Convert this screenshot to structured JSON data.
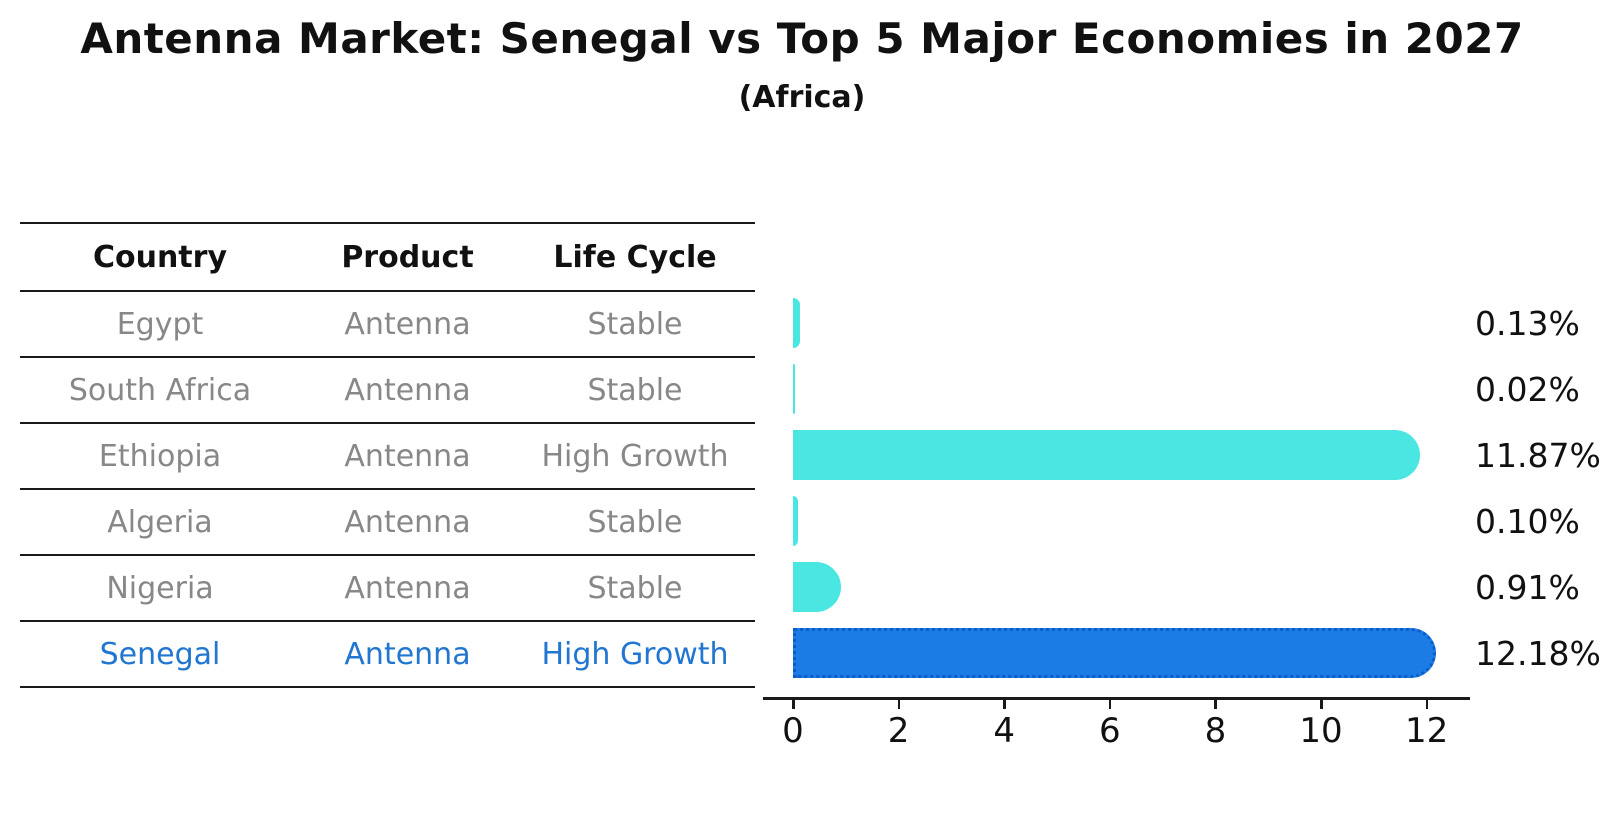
{
  "title": "Antenna Market: Senegal vs Top 5 Major Economies in 2027",
  "subtitle": "(Africa)",
  "table": {
    "headers": [
      "Country",
      "Product",
      "Life Cycle"
    ],
    "rows": [
      {
        "country": "Egypt",
        "product": "Antenna",
        "life_cycle": "Stable",
        "highlight": false
      },
      {
        "country": "South Africa",
        "product": "Antenna",
        "life_cycle": "Stable",
        "highlight": false
      },
      {
        "country": "Ethiopia",
        "product": "Antenna",
        "life_cycle": "High Growth",
        "highlight": false
      },
      {
        "country": "Algeria",
        "product": "Antenna",
        "life_cycle": "Stable",
        "highlight": false
      },
      {
        "country": "Nigeria",
        "product": "Antenna",
        "life_cycle": "Stable",
        "highlight": false
      },
      {
        "country": "Senegal",
        "product": "Antenna",
        "life_cycle": "High Growth",
        "highlight": true
      }
    ]
  },
  "chart_data": {
    "type": "bar",
    "orientation": "horizontal",
    "title": "Antenna Market: Senegal vs Top 5 Major Economies in 2027",
    "subtitle": "(Africa)",
    "categories": [
      "Egypt",
      "South Africa",
      "Ethiopia",
      "Algeria",
      "Nigeria",
      "Senegal"
    ],
    "values": [
      0.13,
      0.02,
      11.87,
      0.1,
      0.91,
      12.18
    ],
    "value_labels": [
      "0.13%",
      "0.02%",
      "11.87%",
      "0.10%",
      "0.91%",
      "12.18%"
    ],
    "x_ticks": [
      0,
      2,
      4,
      6,
      8,
      10,
      12
    ],
    "xlim": [
      0,
      12.77
    ],
    "xlabel": "",
    "ylabel": "",
    "grid": false,
    "legend": "none",
    "highlight_index": 5,
    "colors": {
      "bar_default": "#4ae6e2",
      "bar_highlight": "#1b7ce6",
      "bar_highlight_border": "#0d5dc9",
      "highlight_text": "#2176d2",
      "table_text": "#888888",
      "axis_text": "#111111"
    }
  }
}
